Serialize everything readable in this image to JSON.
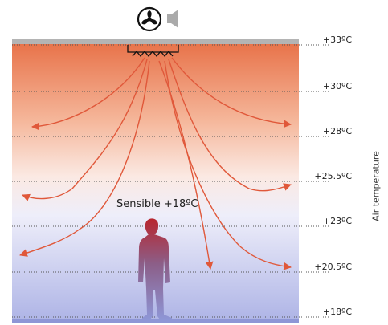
{
  "title": "",
  "sensible_label": "Sensible +18ºC",
  "axis_label": "Air temperature",
  "temperature_levels": [
    {
      "label": "+33ºC"
    },
    {
      "label": "+30ºC"
    },
    {
      "label": "+28ºC"
    },
    {
      "label": "+25.5ºC"
    },
    {
      "label": "+23ºC"
    },
    {
      "label": "+20.5ºC"
    },
    {
      "label": "+18ºC"
    }
  ],
  "icons": [
    "fan-icon",
    "speaker-icon",
    "diffuser-icon",
    "person-silhouette"
  ],
  "colors": {
    "warm": "#e8734a",
    "cool": "#aeb4e6",
    "arrow": "#e0583a",
    "ceiling": "#b4b4b4",
    "floor": "#8e96d6"
  }
}
